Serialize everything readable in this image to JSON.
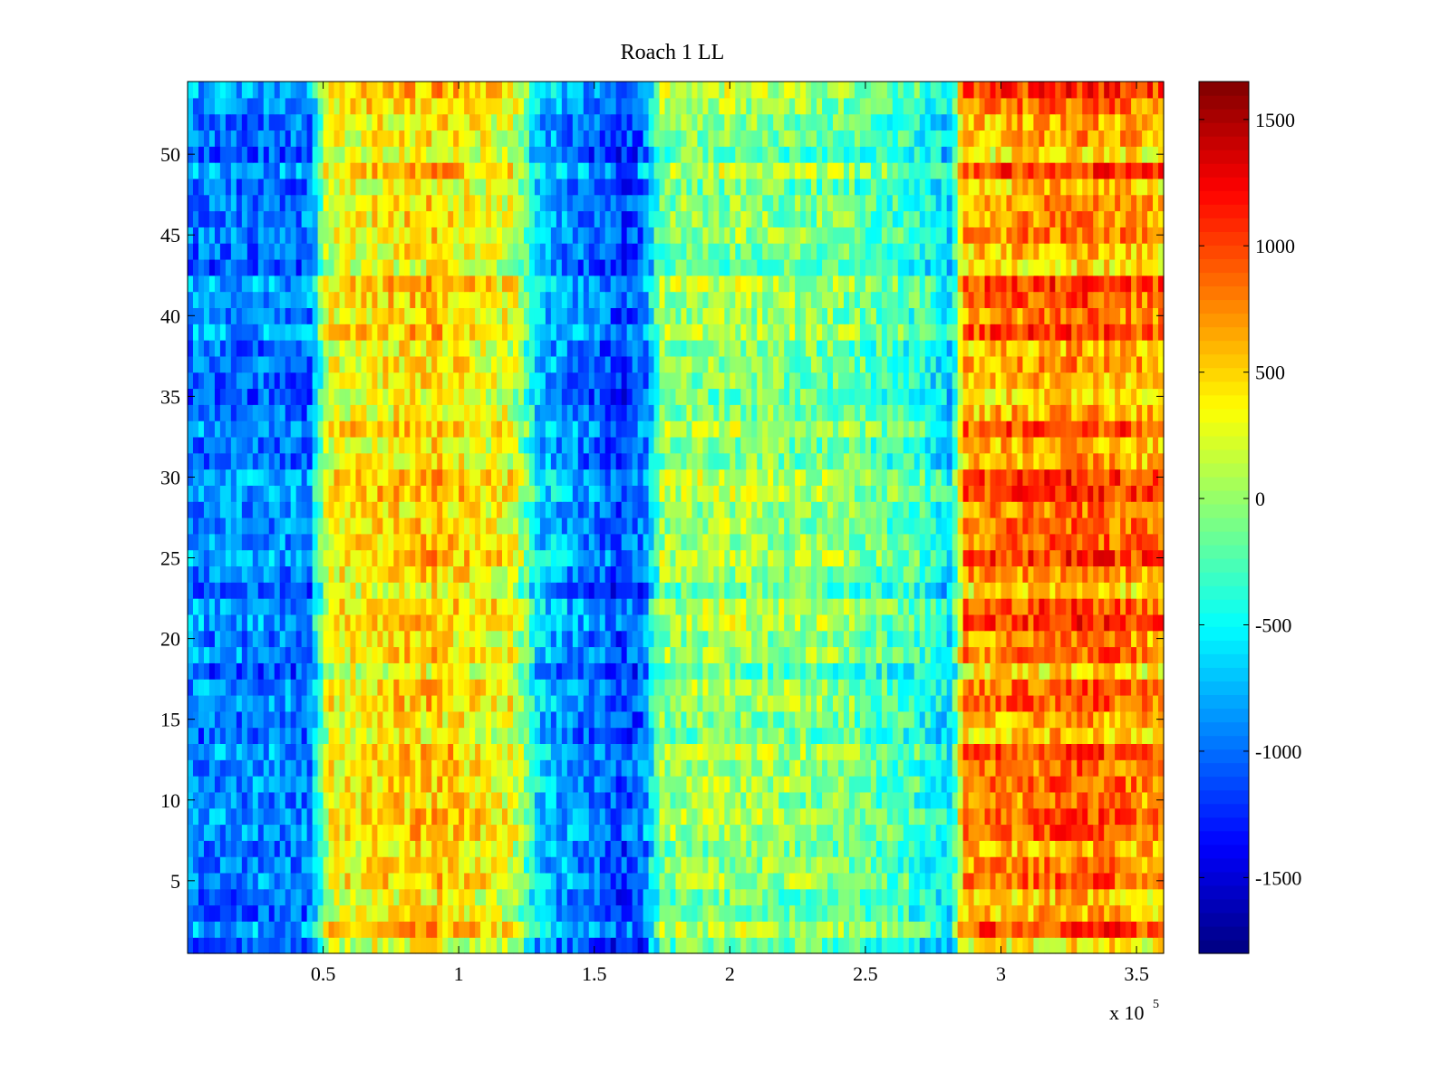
{
  "chart_data": {
    "type": "heatmap",
    "title": "Roach 1 LL",
    "xlabel": "",
    "ylabel": "",
    "x_multiplier_label": "x 10",
    "x_multiplier_exponent": "5",
    "x_range": [
      0,
      360000
    ],
    "y_range": [
      0.5,
      54.5
    ],
    "x_ticks": [
      {
        "value": 50000,
        "label": "0.5"
      },
      {
        "value": 100000,
        "label": "1"
      },
      {
        "value": 150000,
        "label": "1.5"
      },
      {
        "value": 200000,
        "label": "2"
      },
      {
        "value": 250000,
        "label": "2.5"
      },
      {
        "value": 300000,
        "label": "3"
      },
      {
        "value": 350000,
        "label": "3.5"
      }
    ],
    "y_ticks": [
      {
        "value": 5,
        "label": "5"
      },
      {
        "value": 10,
        "label": "10"
      },
      {
        "value": 15,
        "label": "15"
      },
      {
        "value": 20,
        "label": "20"
      },
      {
        "value": 25,
        "label": "25"
      },
      {
        "value": 30,
        "label": "30"
      },
      {
        "value": 35,
        "label": "35"
      },
      {
        "value": 40,
        "label": "40"
      },
      {
        "value": 45,
        "label": "45"
      },
      {
        "value": 50,
        "label": "50"
      }
    ],
    "rows": 54,
    "colorbar": {
      "colormap": "jet",
      "range": [
        -1800,
        1650
      ],
      "ticks": [
        {
          "value": 1500,
          "label": "1500"
        },
        {
          "value": 1000,
          "label": "1000"
        },
        {
          "value": 500,
          "label": "500"
        },
        {
          "value": 0,
          "label": "0"
        },
        {
          "value": -500,
          "label": "-500"
        },
        {
          "value": -1000,
          "label": "-1000"
        },
        {
          "value": -1500,
          "label": "-1500"
        }
      ]
    },
    "value_profile_x": [
      0,
      45000,
      52000,
      90000,
      120000,
      130000,
      150000,
      160000,
      168000,
      175000,
      200000,
      240000,
      270000,
      282000,
      286000,
      300000,
      330000,
      360000
    ],
    "value_profile_v": [
      -950,
      -950,
      300,
      500,
      250,
      -700,
      -1000,
      -1150,
      -1000,
      -50,
      0,
      -100,
      -350,
      -600,
      650,
      700,
      800,
      650
    ],
    "grid": false
  }
}
